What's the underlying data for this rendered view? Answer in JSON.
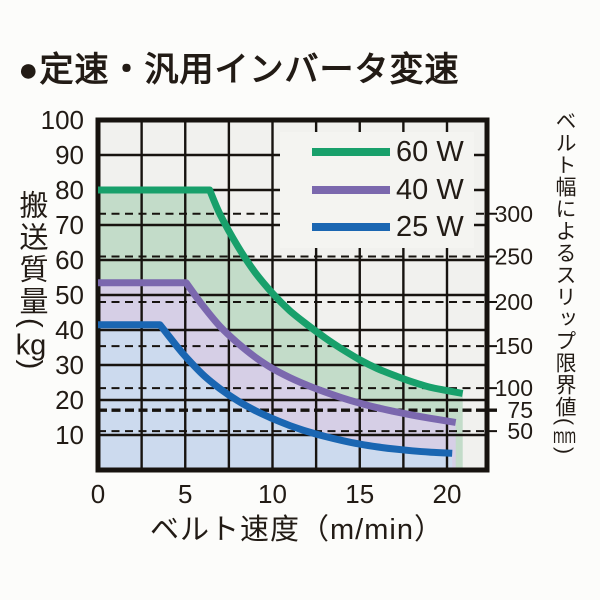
{
  "page": {
    "title": "●定速・汎用インバータ変速"
  },
  "colors": {
    "page_bg": "#fcfcfa",
    "plot_bg": "#f1f1ee",
    "legend_bg": "#f4f4f1",
    "grid": "#17130f",
    "text": "#221b15"
  },
  "chart_data": {
    "type": "line",
    "title": "定速・汎用インバータ変速",
    "xlabel": "ベルト速度（m/min）",
    "ylabel_left": {
      "text": "搬送質量",
      "paren_open": "(",
      "unit": "kg",
      "paren_close": ")"
    },
    "ylabel_right": {
      "text": "ベルト幅によるスリップ限界値",
      "paren_open": "(",
      "unit": "mm",
      "paren_close": ")"
    },
    "xlim": [
      0,
      22.3
    ],
    "ylim": [
      0,
      100
    ],
    "x_ticks": [
      0,
      5,
      10,
      15,
      20
    ],
    "y_ticks": [
      100,
      90,
      80,
      70,
      60,
      50,
      40,
      30,
      20,
      10
    ],
    "grid": {
      "x_step": 2.5,
      "y_step": 10,
      "style": "solid-black"
    },
    "right_axis_marks": [
      {
        "label": "300",
        "kg": 73.2,
        "bold": false
      },
      {
        "label": "250",
        "kg": 61.0,
        "bold": false
      },
      {
        "label": "200",
        "kg": 48.0,
        "bold": false
      },
      {
        "label": "150",
        "kg": 35.4,
        "bold": false
      },
      {
        "label": "100",
        "kg": 23.4,
        "bold": false
      },
      {
        "label": "75",
        "kg": 17.1,
        "bold": true
      },
      {
        "label": "50",
        "kg": 11.1,
        "bold": false
      }
    ],
    "legend": {
      "position": "top-right",
      "items": [
        "60 W",
        "40 W",
        "25 W"
      ]
    },
    "series": [
      {
        "name": "60 W",
        "color": "#18a06b",
        "fill": "#c3dcc9",
        "flat_value_kg": 80,
        "flat_until": 6.4,
        "end_x": 20.9,
        "points": [
          [
            0,
            80
          ],
          [
            6.4,
            80
          ],
          [
            7,
            73
          ],
          [
            8,
            64
          ],
          [
            9,
            56.5
          ],
          [
            10,
            50.5
          ],
          [
            11,
            45.5
          ],
          [
            12,
            41.5
          ],
          [
            13,
            37.8
          ],
          [
            14,
            34.5
          ],
          [
            15,
            31.5
          ],
          [
            16,
            29
          ],
          [
            17,
            27
          ],
          [
            18,
            25.2
          ],
          [
            19,
            23.7
          ],
          [
            20,
            22.7
          ],
          [
            20.9,
            21.9
          ]
        ]
      },
      {
        "name": "40 W",
        "color": "#7b68ae",
        "fill": "#d6cfe6",
        "flat_value_kg": 53.5,
        "flat_until": 5.05,
        "end_x": 20.5,
        "points": [
          [
            0,
            53.5
          ],
          [
            5.05,
            53.5
          ],
          [
            6,
            47
          ],
          [
            7,
            41
          ],
          [
            8,
            36.3
          ],
          [
            9,
            32.3
          ],
          [
            10,
            29
          ],
          [
            11,
            26.4
          ],
          [
            12,
            24.2
          ],
          [
            13,
            22.3
          ],
          [
            14,
            20.6
          ],
          [
            15,
            19.1
          ],
          [
            16,
            17.8
          ],
          [
            17,
            16.7
          ],
          [
            18,
            15.7
          ],
          [
            19,
            14.8
          ],
          [
            20.5,
            13.6
          ]
        ]
      },
      {
        "name": "25 W",
        "color": "#1a66b2",
        "fill": "#ccdaee",
        "flat_value_kg": 41.5,
        "flat_until": 3.55,
        "end_x": 20.3,
        "points": [
          [
            0,
            41.5
          ],
          [
            3.55,
            41.5
          ],
          [
            4.5,
            35.5
          ],
          [
            5,
            32.5
          ],
          [
            6,
            27.3
          ],
          [
            7,
            23.2
          ],
          [
            8,
            19.8
          ],
          [
            9,
            17
          ],
          [
            10,
            14.7
          ],
          [
            11,
            12.7
          ],
          [
            12,
            11
          ],
          [
            13,
            9.6
          ],
          [
            14,
            8.4
          ],
          [
            15,
            7.4
          ],
          [
            16,
            6.6
          ],
          [
            17,
            6
          ],
          [
            18,
            5.5
          ],
          [
            19,
            5.1
          ],
          [
            20.3,
            4.8
          ]
        ]
      }
    ]
  }
}
